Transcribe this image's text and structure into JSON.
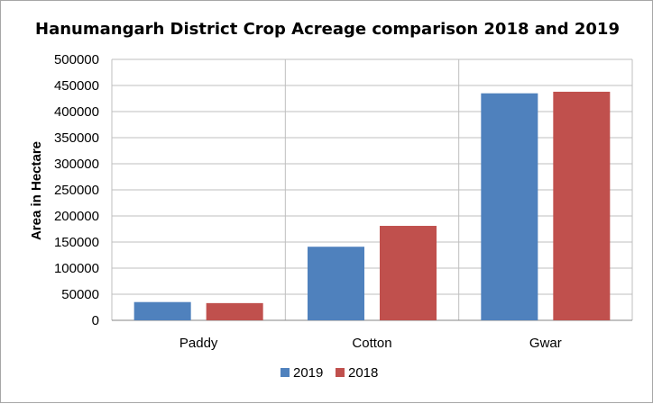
{
  "chart_data": {
    "type": "bar",
    "title": "Hanumangarh District Crop Acreage comparison 2018 and 2019",
    "xlabel": "",
    "ylabel": "Area in Hectare",
    "categories": [
      "Paddy",
      "Cotton",
      "Gwar"
    ],
    "series": [
      {
        "name": "2019",
        "color": "#4f81bd",
        "values": [
          35000,
          141000,
          435000
        ]
      },
      {
        "name": "2018",
        "color": "#c0504d",
        "values": [
          33000,
          181000,
          438000
        ]
      }
    ],
    "ylim": [
      0,
      500000
    ],
    "yticks": [
      "0",
      "50000",
      "100000",
      "150000",
      "200000",
      "250000",
      "300000",
      "350000",
      "400000",
      "450000",
      "500000"
    ],
    "grid": true,
    "legend": "bottom"
  }
}
